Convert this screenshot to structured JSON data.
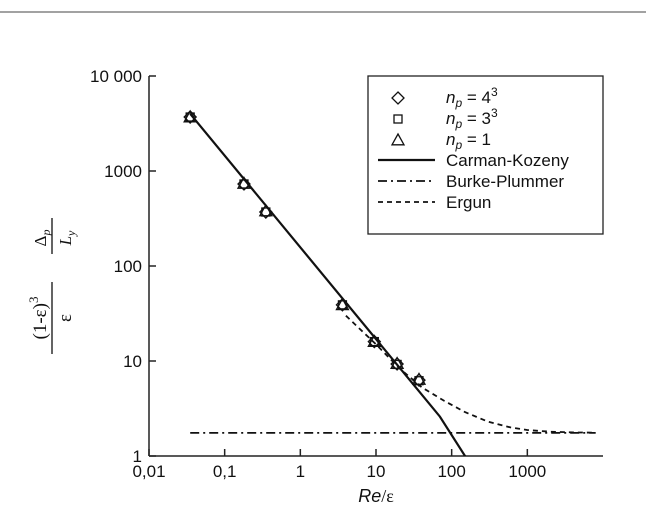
{
  "chart_data": {
    "type": "scatter",
    "x_scale": "log",
    "y_scale": "log",
    "xlim": [
      0.01,
      10000
    ],
    "ylim": [
      1,
      10000
    ],
    "grid": false,
    "legend_position": "top-right",
    "xlabel": {
      "main": "Re",
      "sep": "/",
      "sub": "ε"
    },
    "ylabel": {
      "prefix": "(1-ε)",
      "exp": "3",
      "den": "ε",
      "dp": "Δ",
      "dp_sub": "p",
      "L": "L",
      "L_sub": "y"
    },
    "x_ticks": [
      {
        "value": 0.01,
        "label": "0,01"
      },
      {
        "value": 0.1,
        "label": "0,1"
      },
      {
        "value": 1,
        "label": "1"
      },
      {
        "value": 10,
        "label": "10"
      },
      {
        "value": 100,
        "label": "100"
      },
      {
        "value": 1000,
        "label": "1000"
      }
    ],
    "y_ticks": [
      {
        "value": 1,
        "label": "1"
      },
      {
        "value": 10,
        "label": "10"
      },
      {
        "value": 100,
        "label": "100"
      },
      {
        "value": 1000,
        "label": "1000"
      },
      {
        "value": 10000,
        "label": "10 000"
      }
    ],
    "series": [
      {
        "name_var": "n",
        "name_sub": "p",
        "name_rest": " = 4",
        "name_sup": "3",
        "kind": "points",
        "marker": "diamond",
        "x": [
          0.035,
          0.18,
          0.35,
          3.6,
          9.5,
          19,
          37
        ],
        "y": [
          3700,
          730,
          370,
          39,
          16,
          9.3,
          6.3
        ]
      },
      {
        "name_var": "n",
        "name_sub": "p",
        "name_rest": " = 3",
        "name_sup": "3",
        "kind": "points",
        "marker": "square",
        "x": [
          0.035,
          0.18,
          0.35,
          3.6,
          9.5,
          19,
          37
        ],
        "y": [
          3700,
          730,
          370,
          39,
          16,
          9.2,
          6.2
        ]
      },
      {
        "name_var": "n",
        "name_sub": "p",
        "name_rest": " = 1",
        "name_sup": "",
        "kind": "points",
        "marker": "triangle",
        "x": [
          0.035,
          0.18,
          0.35,
          3.6,
          9.5,
          19,
          37
        ],
        "y": [
          3700,
          740,
          380,
          39,
          16,
          9.4,
          6.4
        ]
      },
      {
        "name": "Carman-Kozeny",
        "kind": "line",
        "style": "solid",
        "x": [
          0.035,
          70,
          200
        ],
        "y": [
          4000,
          2.6,
          0.7
        ]
      },
      {
        "name": "Burke-Plummer",
        "kind": "line",
        "style": "dashdot",
        "x": [
          0.035,
          8000
        ],
        "y": [
          1.75,
          1.75
        ]
      },
      {
        "name": "Ergun",
        "kind": "line",
        "style": "dashed",
        "x": [
          4,
          10,
          20,
          40,
          80,
          150,
          300,
          600,
          1000,
          2000,
          4000,
          8000
        ],
        "y": [
          30,
          15,
          8.5,
          5.3,
          3.8,
          2.9,
          2.3,
          2.0,
          1.88,
          1.8,
          1.77,
          1.76
        ]
      }
    ]
  }
}
